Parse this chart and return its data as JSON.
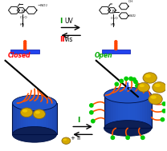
{
  "bg_color": "#ffffff",
  "arrow_color_I": "#009900",
  "arrow_color_II": "#ff0000",
  "label_I": "I",
  "label_UV": "UV",
  "label_II": "II",
  "label_Vis": "Vis",
  "label_closed": "Closed",
  "label_open": "Open",
  "label_bottom_I": "I",
  "label_bottom_II": "+ II",
  "cyl_body": "#1a3a99",
  "cyl_dark": "#0d1f55",
  "cyl_rim": "#2255cc",
  "cyl_side_grad": "#1040aa",
  "gold_fill": "#d4a800",
  "gold_hi": "#f5d000",
  "orange_col": "#ff5500",
  "green_dot": "#00cc00",
  "blue_rect": "#2244ee",
  "red_orange_dot": "#ff4400",
  "fig_width": 2.08,
  "fig_height": 1.89,
  "dpi": 100
}
